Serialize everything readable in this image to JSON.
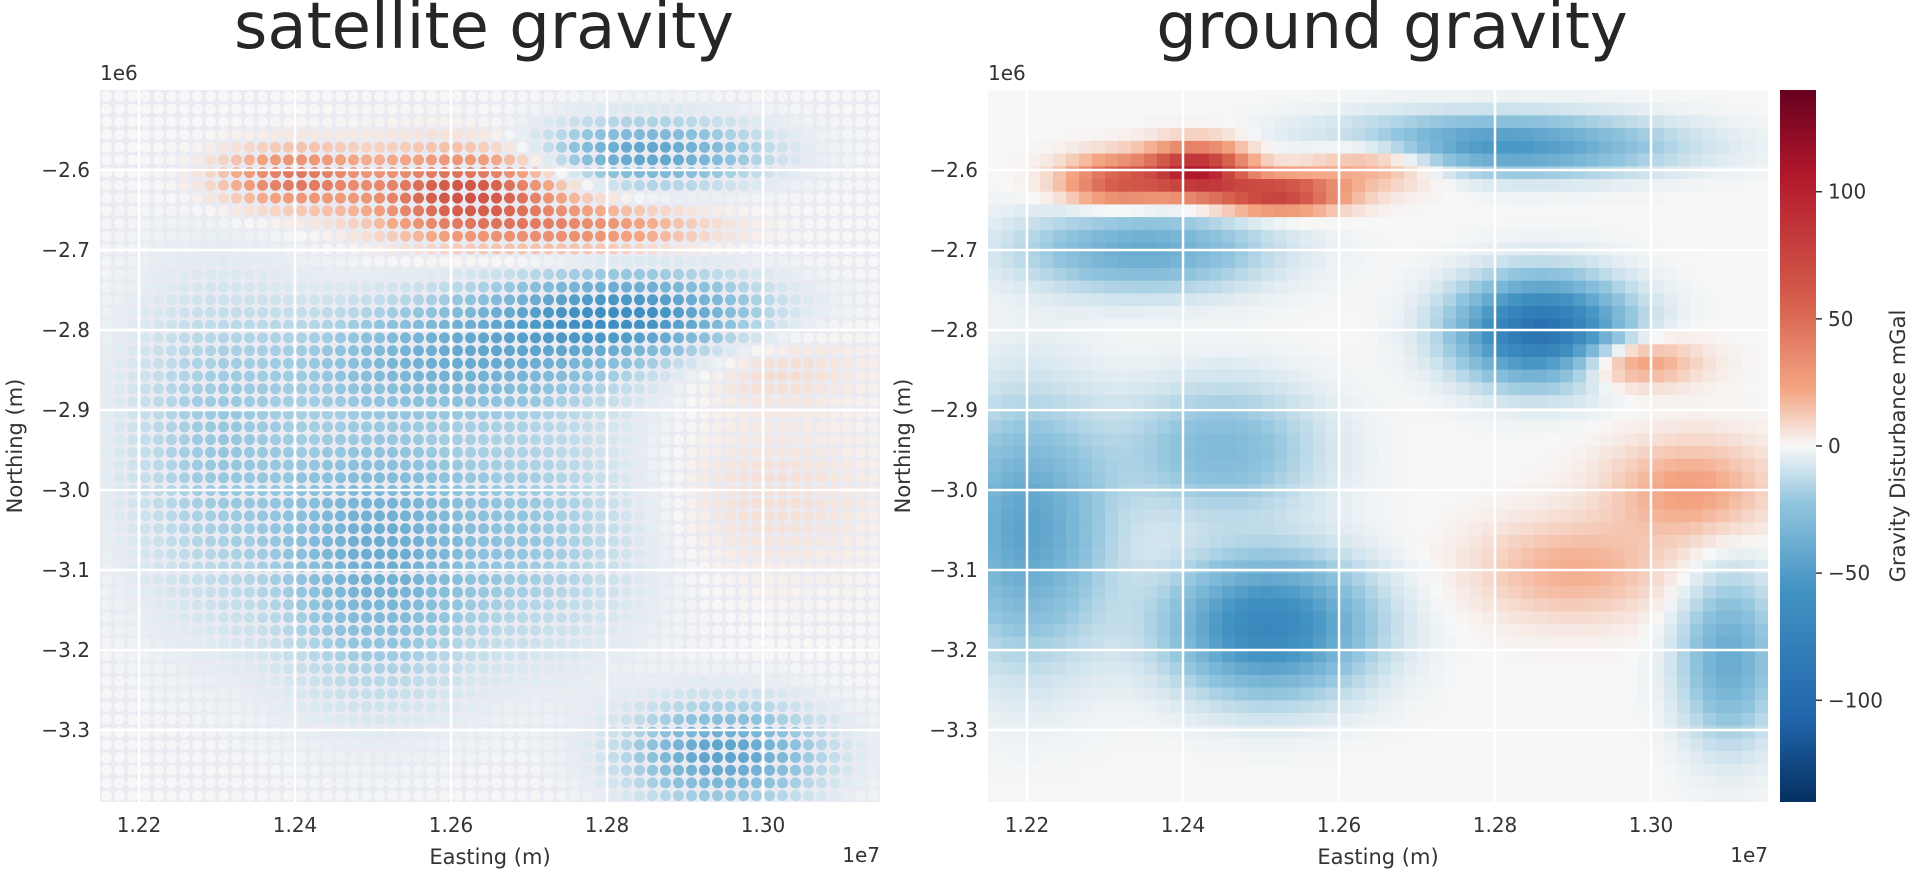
{
  "colors": {
    "negative_max": "#053061",
    "negative_mid": "#2166ac",
    "neutral": "#f7f7f7",
    "positive_mid": "#d6604d",
    "positive_max": "#67001f",
    "plot_background": "#eaeaf2"
  },
  "chart_data": [
    {
      "type": "heatmap",
      "title": "satellite gravity",
      "xlabel": "Easting (m)",
      "ylabel": "Northing (m)",
      "x_offset_label": "1e7",
      "y_offset_label": "1e6",
      "xlim": [
        1.215,
        1.315
      ],
      "ylim": [
        -3.39,
        -2.5
      ],
      "xticks": [
        1.22,
        1.24,
        1.26,
        1.28,
        1.3
      ],
      "xtick_labels": [
        "1.22",
        "1.24",
        "1.26",
        "1.28",
        "1.30"
      ],
      "yticks": [
        -2.6,
        -2.7,
        -2.8,
        -2.9,
        -3.0,
        -3.1,
        -3.2,
        -3.3
      ],
      "ytick_labels": [
        "−2.6",
        "−2.7",
        "−2.8",
        "−2.9",
        "−3.0",
        "−3.1",
        "−3.2",
        "−3.3"
      ],
      "grid": true,
      "render": "points",
      "anomalies": [
        {
          "x": 1.262,
          "y": -2.63,
          "value": 65,
          "rx": 0.012,
          "ry": 0.05
        },
        {
          "x": 1.24,
          "y": -2.61,
          "value": 45,
          "rx": 0.009,
          "ry": 0.035
        },
        {
          "x": 1.278,
          "y": -2.675,
          "value": 30,
          "rx": 0.014,
          "ry": 0.03
        },
        {
          "x": 1.285,
          "y": -2.58,
          "value": -45,
          "rx": 0.014,
          "ry": 0.04
        },
        {
          "x": 1.283,
          "y": -2.78,
          "value": -55,
          "rx": 0.016,
          "ry": 0.05
        },
        {
          "x": 1.262,
          "y": -2.83,
          "value": -35,
          "rx": 0.02,
          "ry": 0.07
        },
        {
          "x": 1.25,
          "y": -3.08,
          "value": -35,
          "rx": 0.012,
          "ry": 0.16
        },
        {
          "x": 1.23,
          "y": -2.95,
          "value": -20,
          "rx": 0.012,
          "ry": 0.2
        },
        {
          "x": 1.295,
          "y": -3.33,
          "value": -45,
          "rx": 0.012,
          "ry": 0.06
        },
        {
          "x": 1.3,
          "y": -2.84,
          "value": 10,
          "rx": 0.012,
          "ry": 0.05
        },
        {
          "x": 1.3,
          "y": -3.01,
          "value": 7,
          "rx": 0.015,
          "ry": 0.1
        },
        {
          "x": 1.27,
          "y": -3.05,
          "value": -20,
          "rx": 0.015,
          "ry": 0.15
        }
      ]
    },
    {
      "type": "heatmap",
      "title": "ground gravity",
      "xlabel": "Easting (m)",
      "ylabel": "Northing (m)",
      "x_offset_label": "1e7",
      "y_offset_label": "1e6",
      "xlim": [
        1.215,
        1.315
      ],
      "ylim": [
        -3.39,
        -2.5
      ],
      "xticks": [
        1.22,
        1.24,
        1.26,
        1.28,
        1.3
      ],
      "xtick_labels": [
        "1.22",
        "1.24",
        "1.26",
        "1.28",
        "1.30"
      ],
      "yticks": [
        -2.6,
        -2.7,
        -2.8,
        -2.9,
        -3.0,
        -3.1,
        -3.2,
        -3.3
      ],
      "ytick_labels": [
        "−2.6",
        "−2.7",
        "−2.8",
        "−2.9",
        "−3.0",
        "−3.1",
        "−3.2",
        "−3.3"
      ],
      "grid": true,
      "render": "continuous",
      "anomalies": [
        {
          "x": 1.242,
          "y": -2.6,
          "value": 100,
          "rx": 0.006,
          "ry": 0.03
        },
        {
          "x": 1.252,
          "y": -2.63,
          "value": 80,
          "rx": 0.008,
          "ry": 0.022
        },
        {
          "x": 1.232,
          "y": -2.615,
          "value": 60,
          "rx": 0.007,
          "ry": 0.03
        },
        {
          "x": 1.265,
          "y": -2.59,
          "value": 35,
          "rx": 0.01,
          "ry": 0.03
        },
        {
          "x": 1.286,
          "y": -2.8,
          "value": -95,
          "rx": 0.01,
          "ry": 0.06
        },
        {
          "x": 1.28,
          "y": -2.57,
          "value": -55,
          "rx": 0.02,
          "ry": 0.035
        },
        {
          "x": 1.251,
          "y": -3.17,
          "value": -70,
          "rx": 0.012,
          "ry": 0.08
        },
        {
          "x": 1.22,
          "y": -3.05,
          "value": -45,
          "rx": 0.01,
          "ry": 0.15
        },
        {
          "x": 1.235,
          "y": -2.7,
          "value": -40,
          "rx": 0.015,
          "ry": 0.05
        },
        {
          "x": 1.297,
          "y": -2.84,
          "value": 35,
          "rx": 0.008,
          "ry": 0.03
        },
        {
          "x": 1.305,
          "y": -3.0,
          "value": 25,
          "rx": 0.01,
          "ry": 0.06
        },
        {
          "x": 1.29,
          "y": -3.1,
          "value": 20,
          "rx": 0.012,
          "ry": 0.06
        },
        {
          "x": 1.31,
          "y": -3.21,
          "value": -40,
          "rx": 0.006,
          "ry": 0.1
        },
        {
          "x": 1.245,
          "y": -2.95,
          "value": -30,
          "rx": 0.012,
          "ry": 0.08
        }
      ]
    }
  ],
  "colorbar": {
    "label": "Gravity Disturbance mGal",
    "vmin": -140,
    "vmax": 140,
    "ticks": [
      100,
      50,
      0,
      -50,
      -100
    ],
    "tick_labels": [
      "100",
      "50",
      "0",
      "−50",
      "−100"
    ]
  }
}
